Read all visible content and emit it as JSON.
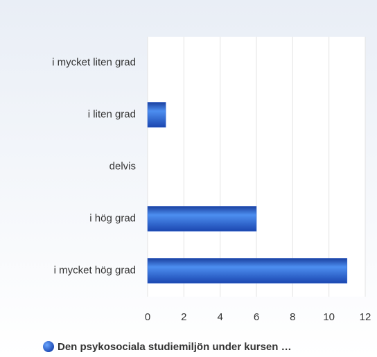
{
  "chart_data": {
    "type": "bar",
    "orientation": "horizontal",
    "categories": [
      "i mycket liten grad",
      "i liten grad",
      "delvis",
      "i hög grad",
      "i mycket hög grad"
    ],
    "series": [
      {
        "name": "Den psykosociala studiemiljön under kursen …",
        "color": "#2a5fd0",
        "values": [
          0,
          1,
          0,
          6,
          11
        ]
      }
    ],
    "xlim": [
      0,
      12
    ],
    "xticks": [
      0,
      2,
      4,
      6,
      8,
      10,
      12
    ],
    "grid": true,
    "legend": "bottom"
  }
}
